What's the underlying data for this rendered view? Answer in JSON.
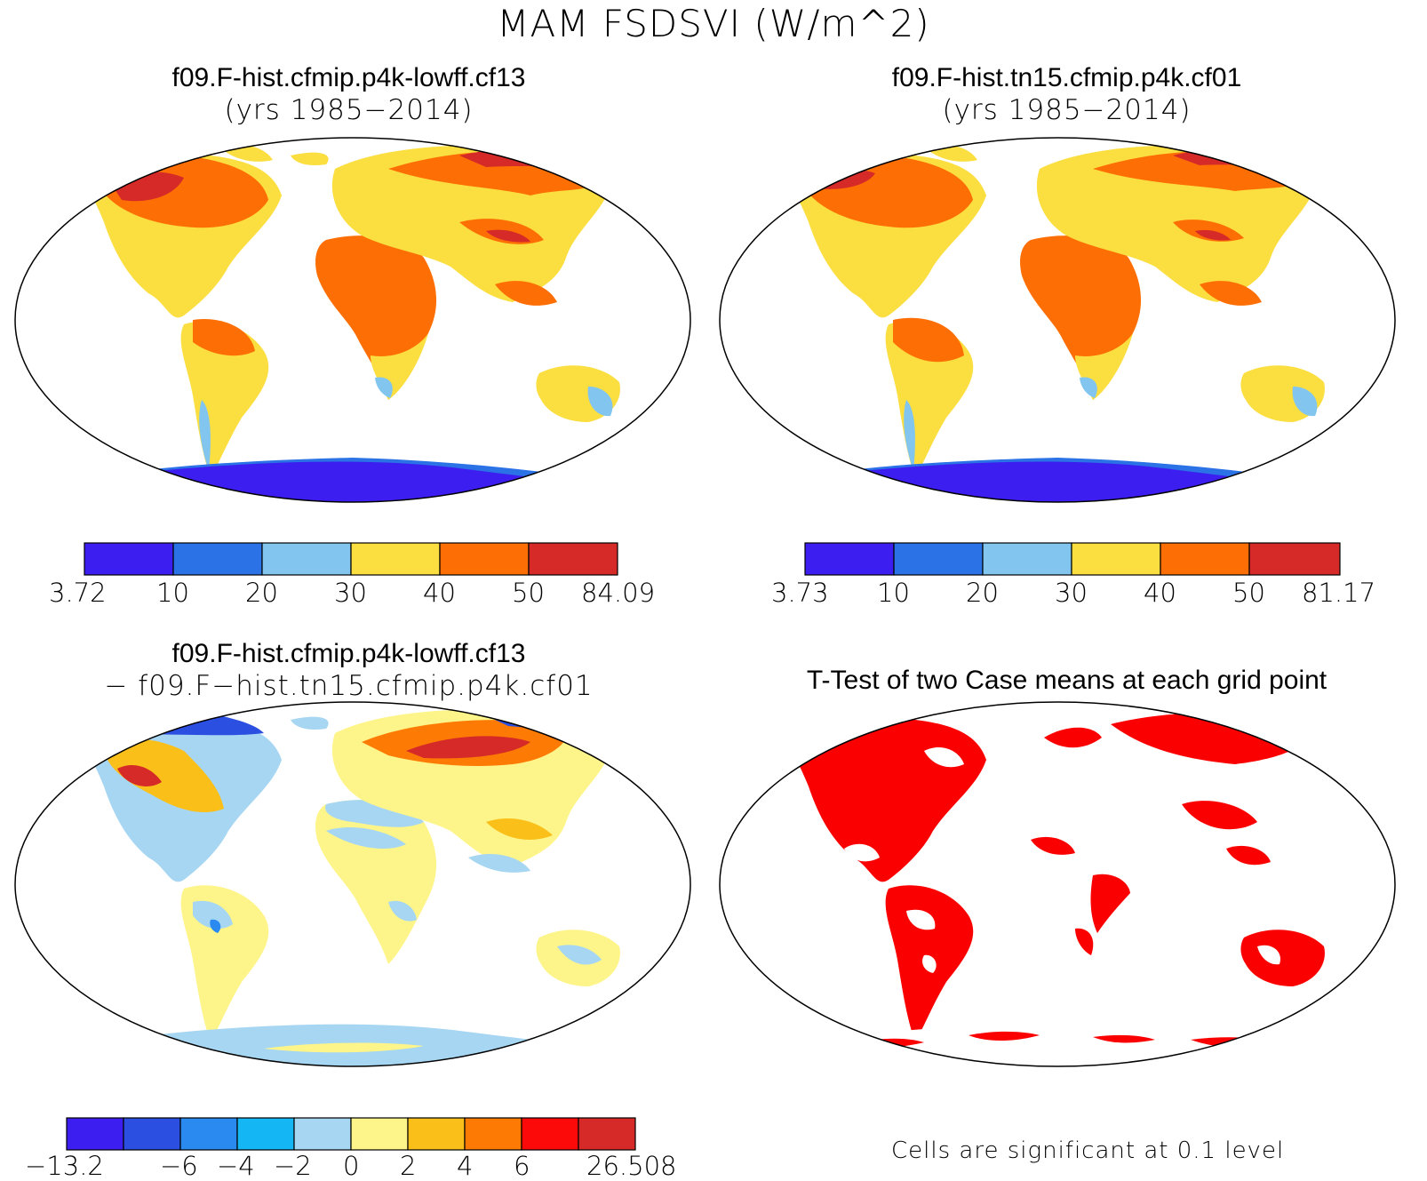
{
  "figure": {
    "title": "MAM FSDSVI (W/m^2)",
    "colors": {
      "c1": "#3c1ff0",
      "c2": "#2a72e6",
      "c3": "#82c6f0",
      "c4": "#fbde40",
      "c5": "#fd6f04",
      "c6": "#d52a28",
      "d1": "#3c1ff0",
      "d2": "#2b4fe0",
      "d3": "#2a8af0",
      "d4": "#14b6f4",
      "d5": "#a6d6f2",
      "d6": "#fdf58a",
      "d7": "#fbbf1a",
      "d8": "#fd7a04",
      "d9": "#fc0a0a",
      "d10": "#d52a28",
      "sig": "#fb0000"
    }
  },
  "panels": {
    "case1": {
      "title": "f09.F-hist.cfmip.p4k-lowff.cf13",
      "subtitle": "(yrs 1985−2014)",
      "colorbar": [
        "3.72",
        "10",
        "20",
        "30",
        "40",
        "50",
        "84.09"
      ]
    },
    "case2": {
      "title": "f09.F-hist.tn15.cfmip.p4k.cf01",
      "subtitle": "(yrs 1985−2014)",
      "colorbar": [
        "3.73",
        "10",
        "20",
        "30",
        "40",
        "50",
        "81.17"
      ]
    },
    "diff": {
      "title": "f09.F-hist.cfmip.p4k-lowff.cf13",
      "subtitle": "− f09.F−hist.tn15.cfmip.p4k.cf01",
      "colorbar": [
        "−13.2",
        "−6",
        "−4",
        "−2",
        "0",
        "2",
        "4",
        "6",
        "26.508"
      ]
    },
    "ttest": {
      "title": "T-Test of two Case means at each grid point",
      "note": "Cells are significant at 0.1 level"
    }
  }
}
